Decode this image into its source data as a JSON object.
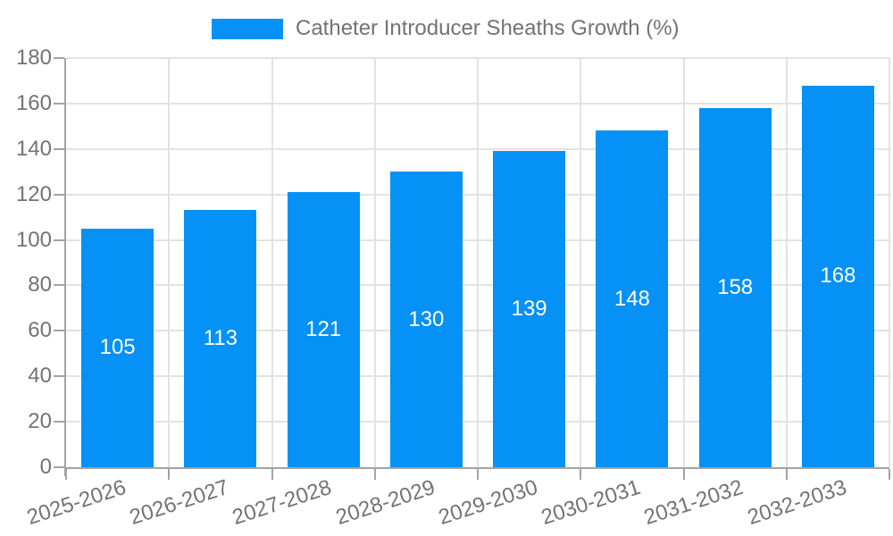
{
  "chart_data": {
    "type": "bar",
    "title": "Catheter Introducer Sheaths Growth (%)",
    "legend": [
      "Catheter Introducer Sheaths Growth (%)"
    ],
    "legend_position": "top-center",
    "categories": [
      "2025-2026",
      "2026-2027",
      "2027-2028",
      "2028-2029",
      "2029-2030",
      "2030-2031",
      "2031-2032",
      "2032-2033"
    ],
    "values": [
      105,
      113,
      121,
      130,
      139,
      148,
      158,
      168
    ],
    "xlabel": "",
    "ylabel": "",
    "ylim": [
      0,
      180
    ],
    "ytick_step": 20,
    "yticks": [
      0,
      20,
      40,
      60,
      80,
      100,
      120,
      140,
      160,
      180
    ],
    "grid": true,
    "bar_value_labels_inside": true,
    "colors": {
      "bar": "#0591f5",
      "bar_label": "#ffffff",
      "axis": "#a3a3a3",
      "grid": "#e2e2e2",
      "tick_label": "#737373",
      "background": "#ffffff"
    }
  }
}
